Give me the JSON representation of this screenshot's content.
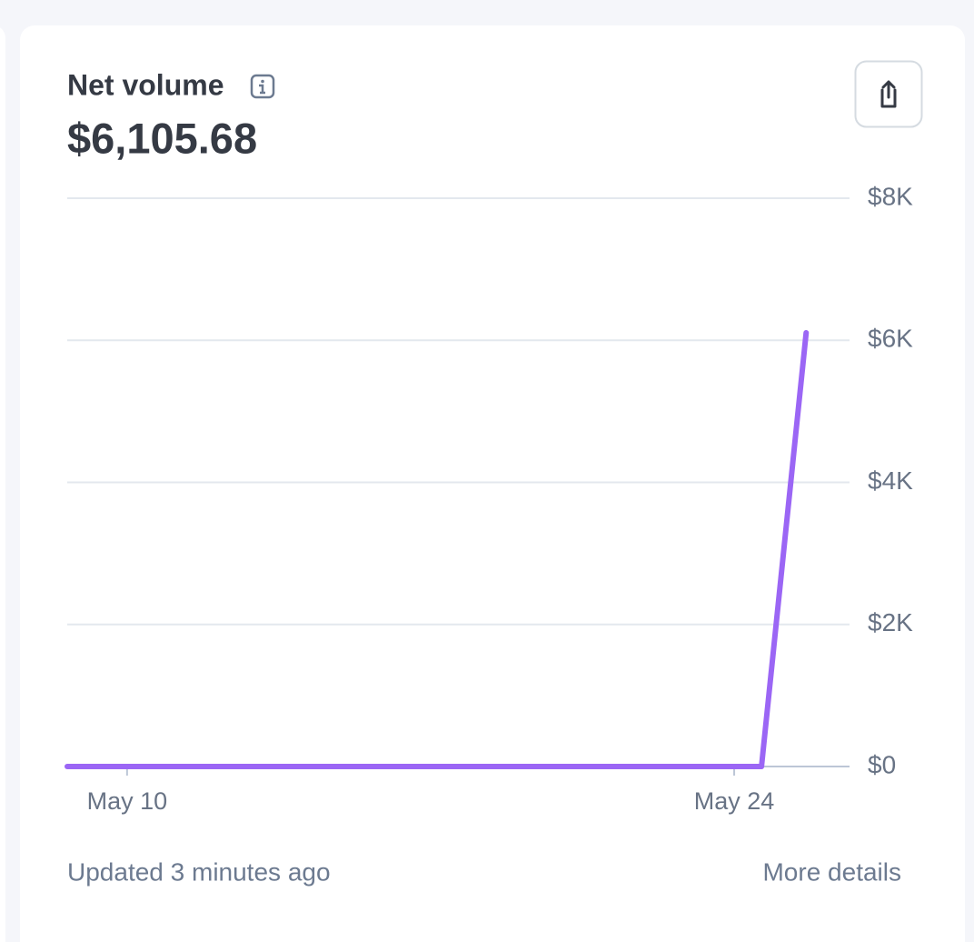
{
  "card": {
    "title": "Net volume",
    "amount": "$6,105.68",
    "updated": "Updated 3 minutes ago",
    "link": "More details"
  },
  "chart_data": {
    "type": "line",
    "x": [
      8.62,
      24.63,
      25.66
    ],
    "series": [
      {
        "color": "#9b66f5",
        "values": [
          0,
          0,
          6105.68
        ]
      }
    ],
    "xlim": [
      8.62,
      26.66
    ],
    "xticks": [
      {
        "value": 10,
        "label": "May 10"
      },
      {
        "value": 24,
        "label": "May 24"
      }
    ],
    "ylim": [
      0,
      8000
    ],
    "yticks": [
      {
        "value": 0,
        "label": "$0"
      },
      {
        "value": 2000,
        "label": "$2K"
      },
      {
        "value": 4000,
        "label": "$4K"
      },
      {
        "value": 6000,
        "label": "$6K"
      },
      {
        "value": 8000,
        "label": "$8K"
      }
    ],
    "grid": true
  }
}
